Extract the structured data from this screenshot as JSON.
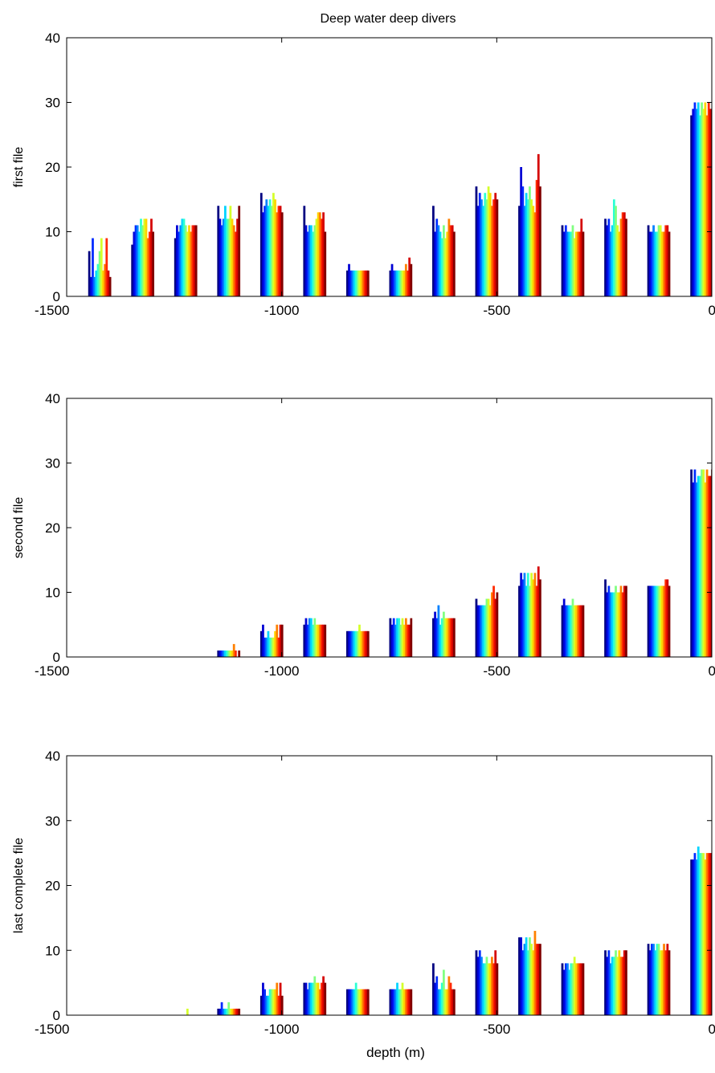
{
  "figure": {
    "title": "Deep water deep divers"
  },
  "chart_data": [
    {
      "type": "bar",
      "panel": 1,
      "title": "Deep water deep divers",
      "xlabel": "",
      "ylabel": "first file",
      "xlim": [
        -1500,
        0
      ],
      "ylim": [
        0,
        40
      ],
      "xticks": [
        -1500,
        -1000,
        -500,
        0
      ],
      "yticks": [
        0,
        10,
        20,
        30,
        40
      ],
      "colormap": "jet",
      "grid": false,
      "groups": [
        {
          "center": -1400,
          "values": [
            7,
            3,
            9,
            3,
            4,
            5,
            7,
            9,
            4,
            5,
            9,
            4,
            3
          ]
        },
        {
          "center": -1300,
          "values": [
            8,
            10,
            11,
            11,
            10,
            12,
            11,
            12,
            12,
            9,
            10,
            12,
            10
          ]
        },
        {
          "center": -1200,
          "values": [
            9,
            11,
            10,
            11,
            12,
            12,
            11,
            10,
            11,
            10,
            11,
            11,
            11
          ]
        },
        {
          "center": -1100,
          "values": [
            14,
            12,
            11,
            12,
            14,
            12,
            12,
            14,
            12,
            11,
            10,
            12,
            14
          ]
        },
        {
          "center": -1000,
          "values": [
            16,
            13,
            14,
            15,
            14,
            15,
            14,
            16,
            15,
            13,
            14,
            14,
            13
          ]
        },
        {
          "center": -900,
          "values": [
            14,
            11,
            10,
            11,
            11,
            10,
            11,
            12,
            13,
            13,
            12,
            13,
            10
          ]
        },
        {
          "center": -800,
          "values": [
            4,
            5,
            4,
            4,
            4,
            4,
            4,
            4,
            4,
            4,
            4,
            4,
            4
          ]
        },
        {
          "center": -700,
          "values": [
            4,
            5,
            4,
            4,
            4,
            4,
            4,
            4,
            4,
            5,
            4,
            6,
            5
          ]
        },
        {
          "center": -600,
          "values": [
            14,
            10,
            12,
            11,
            10,
            9,
            11,
            9,
            10,
            12,
            11,
            11,
            10
          ]
        },
        {
          "center": -500,
          "values": [
            17,
            14,
            16,
            15,
            14,
            16,
            15,
            17,
            16,
            14,
            15,
            16,
            15
          ]
        },
        {
          "center": -400,
          "values": [
            14,
            20,
            17,
            14,
            16,
            15,
            17,
            15,
            14,
            13,
            18,
            22,
            17
          ]
        },
        {
          "center": -300,
          "values": [
            11,
            10,
            11,
            10,
            10,
            10,
            11,
            9,
            10,
            10,
            10,
            12,
            10
          ]
        },
        {
          "center": -200,
          "values": [
            12,
            11,
            12,
            10,
            11,
            15,
            14,
            11,
            10,
            12,
            13,
            13,
            12
          ]
        },
        {
          "center": -100,
          "values": [
            11,
            10,
            10,
            11,
            10,
            10,
            11,
            11,
            10,
            10,
            11,
            11,
            10
          ]
        },
        {
          "center": 0,
          "values": [
            28,
            29,
            30,
            29,
            30,
            28,
            30,
            29,
            30,
            28,
            30,
            29,
            29
          ]
        }
      ]
    },
    {
      "type": "bar",
      "panel": 2,
      "xlabel": "",
      "ylabel": "second file",
      "xlim": [
        -1500,
        0
      ],
      "ylim": [
        0,
        40
      ],
      "xticks": [
        -1500,
        -1000,
        -500,
        0
      ],
      "yticks": [
        0,
        10,
        20,
        30,
        40
      ],
      "colormap": "jet",
      "grid": false,
      "groups": [
        {
          "center": -1100,
          "values": [
            1,
            1,
            1,
            1,
            1,
            1,
            1,
            1,
            1,
            2,
            1,
            0,
            1
          ]
        },
        {
          "center": -1000,
          "values": [
            4,
            5,
            3,
            3,
            4,
            3,
            3,
            3,
            4,
            5,
            3,
            5,
            5
          ]
        },
        {
          "center": -900,
          "values": [
            5,
            6,
            5,
            6,
            6,
            5,
            6,
            5,
            5,
            5,
            5,
            5,
            5
          ]
        },
        {
          "center": -800,
          "values": [
            4,
            4,
            4,
            4,
            4,
            4,
            4,
            5,
            4,
            4,
            4,
            4,
            4
          ]
        },
        {
          "center": -700,
          "values": [
            6,
            5,
            6,
            5,
            6,
            6,
            5,
            6,
            5,
            6,
            5,
            5,
            6
          ]
        },
        {
          "center": -600,
          "values": [
            6,
            7,
            6,
            8,
            5,
            6,
            7,
            6,
            6,
            6,
            6,
            6,
            6
          ]
        },
        {
          "center": -500,
          "values": [
            9,
            8,
            8,
            8,
            8,
            8,
            9,
            9,
            8,
            10,
            11,
            9,
            10
          ]
        },
        {
          "center": -400,
          "values": [
            11,
            13,
            12,
            13,
            11,
            13,
            11,
            13,
            12,
            13,
            11,
            14,
            12
          ]
        },
        {
          "center": -300,
          "values": [
            8,
            9,
            8,
            8,
            8,
            8,
            9,
            8,
            8,
            8,
            8,
            8,
            8
          ]
        },
        {
          "center": -200,
          "values": [
            12,
            10,
            11,
            10,
            10,
            10,
            11,
            10,
            10,
            11,
            10,
            11,
            11
          ]
        },
        {
          "center": -100,
          "values": [
            11,
            11,
            11,
            11,
            11,
            11,
            11,
            11,
            11,
            11,
            12,
            12,
            11
          ]
        },
        {
          "center": 0,
          "values": [
            29,
            27,
            29,
            27,
            28,
            28,
            29,
            29,
            27,
            29,
            28,
            28,
            29
          ]
        }
      ]
    },
    {
      "type": "bar",
      "panel": 3,
      "xlabel": "depth (m)",
      "ylabel": "last complete file",
      "xlim": [
        -1500,
        0
      ],
      "ylim": [
        0,
        40
      ],
      "xticks": [
        -1500,
        -1000,
        -500,
        0
      ],
      "yticks": [
        0,
        10,
        20,
        30,
        40
      ],
      "colormap": "jet",
      "grid": false,
      "groups": [
        {
          "center": -1200,
          "values": [
            0,
            0,
            0,
            0,
            0,
            0,
            0,
            1,
            0,
            0,
            0,
            0,
            0
          ]
        },
        {
          "center": -1100,
          "values": [
            1,
            1,
            2,
            1,
            1,
            1,
            2,
            1,
            1,
            1,
            1,
            1,
            1
          ]
        },
        {
          "center": -1000,
          "values": [
            3,
            5,
            4,
            3,
            3,
            4,
            4,
            4,
            4,
            5,
            3,
            5,
            3
          ]
        },
        {
          "center": -900,
          "values": [
            5,
            5,
            4,
            5,
            5,
            5,
            6,
            5,
            5,
            4,
            5,
            6,
            5
          ]
        },
        {
          "center": -800,
          "values": [
            4,
            4,
            4,
            4,
            4,
            5,
            4,
            4,
            4,
            4,
            4,
            4,
            4
          ]
        },
        {
          "center": -700,
          "values": [
            4,
            4,
            4,
            4,
            5,
            4,
            4,
            5,
            4,
            4,
            4,
            4,
            4
          ]
        },
        {
          "center": -600,
          "values": [
            8,
            5,
            6,
            4,
            4,
            5,
            7,
            4,
            4,
            6,
            5,
            4,
            4
          ]
        },
        {
          "center": -500,
          "values": [
            10,
            9,
            10,
            9,
            8,
            8,
            9,
            8,
            8,
            9,
            8,
            10,
            8
          ]
        },
        {
          "center": -400,
          "values": [
            12,
            12,
            10,
            11,
            12,
            10,
            12,
            11,
            10,
            13,
            11,
            11,
            11
          ]
        },
        {
          "center": -300,
          "values": [
            8,
            7,
            8,
            8,
            7,
            8,
            8,
            9,
            8,
            8,
            8,
            8,
            8
          ]
        },
        {
          "center": -200,
          "values": [
            10,
            9,
            10,
            8,
            9,
            9,
            10,
            9,
            10,
            9,
            9,
            10,
            10
          ]
        },
        {
          "center": -100,
          "values": [
            11,
            10,
            11,
            11,
            10,
            11,
            11,
            10,
            10,
            11,
            10,
            11,
            10
          ]
        },
        {
          "center": 0,
          "values": [
            24,
            24,
            25,
            24,
            26,
            25,
            25,
            25,
            24,
            25,
            25,
            25,
            25
          ]
        }
      ]
    }
  ]
}
